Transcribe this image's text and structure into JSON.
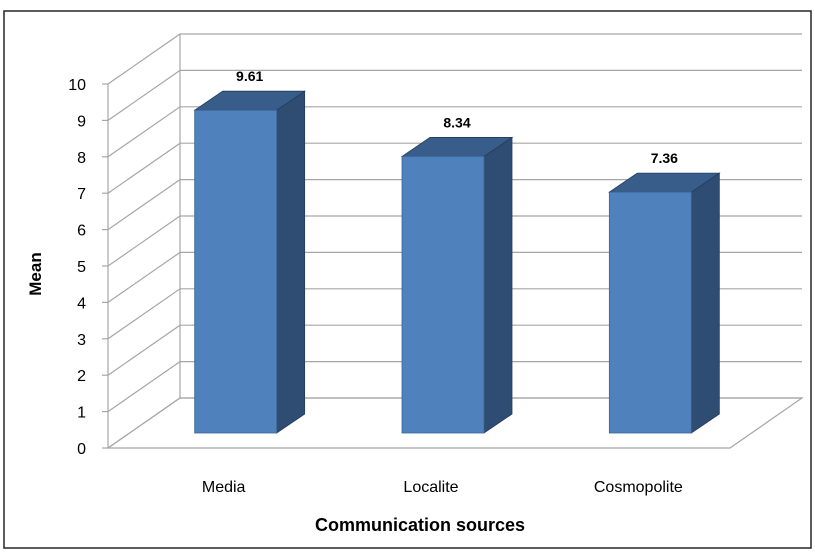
{
  "chart_data": {
    "type": "bar",
    "title": "",
    "xlabel": "Communication sources",
    "ylabel": "Mean",
    "categories": [
      "Media",
      "Localite",
      "Cosmopolite"
    ],
    "values": [
      9.61,
      8.34,
      7.36
    ],
    "data_labels": [
      "9.61",
      "8.34",
      "7.36"
    ],
    "yticks": [
      "0",
      "1",
      "2",
      "3",
      "4",
      "5",
      "6",
      "7",
      "8",
      "9",
      "10"
    ],
    "ylim": [
      0,
      10
    ],
    "grid": true,
    "legend": "none",
    "style": "3d-column",
    "colors": {
      "bar_front": "#4f81bd",
      "bar_side": "#2f4d73",
      "bar_top": "#385d8a",
      "grid": "#a6a6a6",
      "frame": "#262626"
    }
  }
}
